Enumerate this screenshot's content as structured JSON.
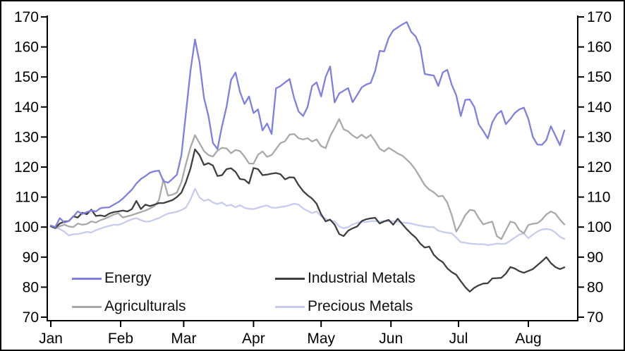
{
  "background": "#ffffff",
  "axis_color": "#000000",
  "chart_data": {
    "type": "line",
    "title": "",
    "xlabel": "",
    "ylabel": "",
    "grid": false,
    "legend_position": "inside-bottom-left",
    "ylim": [
      70,
      170
    ],
    "y_axis": {
      "sides": "both",
      "ticks": [
        170,
        160,
        150,
        140,
        130,
        120,
        110,
        100,
        90,
        80,
        70
      ]
    },
    "x_axis": {
      "ticks": [
        {
          "label": "Jan",
          "day": 0
        },
        {
          "label": "Feb",
          "day": 31
        },
        {
          "label": "Mar",
          "day": 59
        },
        {
          "label": "Apr",
          "day": 90
        },
        {
          "label": "May",
          "day": 120
        },
        {
          "label": "Jun",
          "day": 151
        },
        {
          "label": "Jul",
          "day": 181
        },
        {
          "label": "Aug",
          "day": 212
        }
      ]
    },
    "sampling": {
      "start_day": 0,
      "step_days": 2
    },
    "series": [
      {
        "name": "Energy",
        "color": "#7f7fe2",
        "values": [
          100.5,
          100,
          103,
          101.5,
          102,
          103.5,
          105.2,
          104.4,
          105,
          105.5,
          105.2,
          106.3,
          106.5,
          106.6,
          107.5,
          108.3,
          109.5,
          111,
          112.5,
          114.5,
          116,
          117,
          118.1,
          118.6,
          118.8,
          115.3,
          114.8,
          116,
          117.5,
          124,
          138,
          152,
          162.5,
          155,
          143,
          137,
          128,
          126,
          133.6,
          140,
          149,
          151.5,
          145,
          141,
          143.5,
          138,
          139.2,
          132.2,
          134.5,
          131,
          146.2,
          147,
          148.2,
          149.3,
          143,
          138.5,
          137,
          140,
          147,
          148.2,
          143.5,
          150,
          153.5,
          141.5,
          144.5,
          145.4,
          146.3,
          141.6,
          144,
          146.5,
          147.5,
          148,
          152,
          158.7,
          158.5,
          163,
          165.5,
          166.5,
          167.5,
          168.3,
          165,
          163.5,
          160,
          151,
          150.7,
          150.5,
          147,
          151.5,
          152.4,
          147.4,
          143.9,
          137,
          142.4,
          142.5,
          140,
          134.2,
          132,
          129.5,
          134.9,
          137.5,
          138.7,
          134.3,
          136,
          138,
          139.2,
          139.8,
          136,
          130,
          127.5,
          127.4,
          129,
          133.6,
          130.5,
          127.3,
          132.2
        ]
      },
      {
        "name": "Agriculturals",
        "color": "#a9a9a9",
        "values": [
          100.2,
          99.5,
          100.3,
          100.8,
          100.2,
          100,
          101.2,
          100.8,
          101,
          101.9,
          101.5,
          102.3,
          102.8,
          103.5,
          104.2,
          104.6,
          103.2,
          103.6,
          104,
          104.5,
          105,
          105.5,
          106.2,
          107,
          109,
          115.9,
          110.5,
          110.8,
          111.5,
          115,
          121,
          126.5,
          130.6,
          128,
          125.3,
          124,
          123.5,
          125.5,
          126.4,
          126.2,
          124.6,
          125.7,
          125.3,
          123.5,
          121.2,
          121.1,
          124.1,
          125.2,
          123.4,
          124,
          126,
          128,
          128.6,
          130.8,
          131,
          129.6,
          129.2,
          129.6,
          128.5,
          129.2,
          127,
          126.3,
          130.3,
          133,
          136,
          132.6,
          131.9,
          130.5,
          129.6,
          130.8,
          129.6,
          130.7,
          128.6,
          126.1,
          125.2,
          126.4,
          125.5,
          124.5,
          123.8,
          122.5,
          121,
          119,
          116.5,
          114,
          112.5,
          111.6,
          110.2,
          110.4,
          108.2,
          104,
          98.5,
          101,
          104,
          105.7,
          105.5,
          103,
          100.9,
          101.4,
          101.8,
          97,
          96,
          98.9,
          101.8,
          101.4,
          99,
          97.9,
          100.7,
          101.1,
          101.3,
          102.5,
          104.2,
          105.2,
          104.5,
          102.5,
          100.9
        ]
      },
      {
        "name": "Industrial Metals",
        "color": "#3f3f3f",
        "values": [
          100.3,
          99.8,
          101.2,
          101.8,
          102,
          103.6,
          103.2,
          104.8,
          104.3,
          105.8,
          103.7,
          103.9,
          103.6,
          104.5,
          105,
          105.2,
          105.5,
          105.2,
          106,
          108.7,
          106,
          107.5,
          107,
          107.5,
          108,
          108,
          108.5,
          109,
          110,
          111.5,
          115,
          119.5,
          125.9,
          124,
          120.7,
          121.3,
          120.5,
          117,
          117.3,
          119.3,
          119.6,
          118.4,
          116,
          115.8,
          114.5,
          119.7,
          119.3,
          117.3,
          117.5,
          117.8,
          118,
          117.6,
          115.9,
          116.6,
          116.5,
          114,
          112,
          110.6,
          109.5,
          107.8,
          104.3,
          101.9,
          102.5,
          100.8,
          97.7,
          97,
          98.8,
          99.6,
          100.2,
          102,
          102.6,
          102.9,
          103.1,
          101.2,
          101.9,
          102.4,
          100.8,
          102.8,
          101,
          99.3,
          97.8,
          96.5,
          94.5,
          93.2,
          93.5,
          90.8,
          89.3,
          88.3,
          86.3,
          85,
          84.1,
          82,
          80,
          78.5,
          79.8,
          80.6,
          81.2,
          81.3,
          82.9,
          83,
          83.1,
          84.5,
          86.7,
          86.2,
          85.3,
          84.8,
          85.4,
          86,
          87.3,
          88.6,
          90,
          88,
          86.7,
          86,
          86.6
        ]
      },
      {
        "name": "Precious Metals",
        "color": "#c7cbf1",
        "values": [
          100.4,
          100,
          99.3,
          98.5,
          97.2,
          97.6,
          97.7,
          98,
          98.4,
          98.2,
          99,
          99.5,
          100,
          100.4,
          100.8,
          100.7,
          101.3,
          102,
          102.6,
          103,
          102.3,
          101.8,
          101.9,
          102.5,
          103,
          103.8,
          104.5,
          104.8,
          105.1,
          105.7,
          106.5,
          109.2,
          112.8,
          109.9,
          108.7,
          109.2,
          108.2,
          107.7,
          108.2,
          107.1,
          107.4,
          106.6,
          107.3,
          106.4,
          106.1,
          106,
          106.4,
          106.9,
          107.2,
          106.5,
          106.4,
          106.7,
          106.9,
          107.3,
          107.8,
          107.5,
          106.2,
          105.4,
          104.7,
          105.2,
          103.6,
          102.8,
          102.2,
          101.9,
          100.2,
          99.6,
          100,
          100.9,
          101.4,
          101.7,
          101.7,
          102,
          102,
          101.8,
          102,
          101.9,
          102,
          101.8,
          101.5,
          101.4,
          101.2,
          100.8,
          100.5,
          100.2,
          100,
          100,
          98.8,
          98.4,
          98.1,
          97.9,
          96.5,
          95,
          94.8,
          94.5,
          94.4,
          94.3,
          94.3,
          94,
          94.2,
          94.5,
          94.4,
          94.5,
          95.5,
          96.5,
          97.5,
          97.9,
          96.3,
          97.5,
          98.5,
          99.2,
          99.4,
          99.1,
          98.2,
          96.8,
          96
        ]
      }
    ]
  },
  "legend": {
    "rows": [
      [
        "Energy",
        "Industrial Metals"
      ],
      [
        "Agriculturals",
        "Precious Metals"
      ]
    ]
  }
}
